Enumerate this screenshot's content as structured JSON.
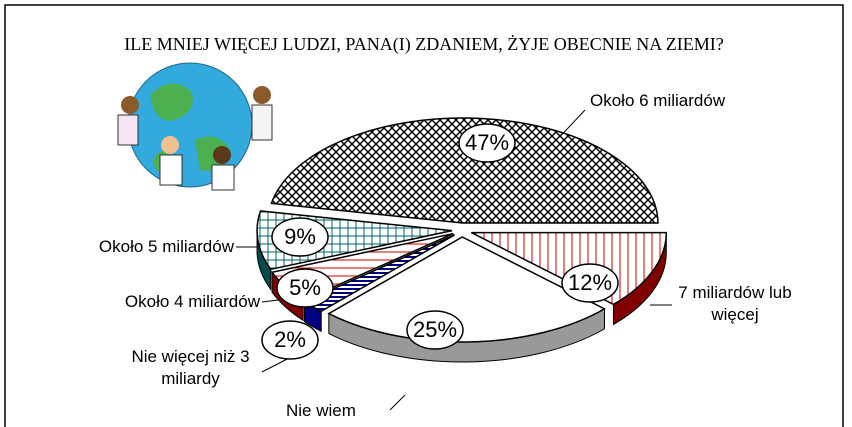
{
  "chart_data": {
    "type": "pie3d",
    "title": "ILE MNIEJ WIĘCEJ LUDZI, PANA(I) ZDANIEM, ŻYJE OBECNIE NA ZIEMI?",
    "categories": [
      "Około 6 miliardów",
      "7 miliardów lub więcej",
      "Nie wiem",
      "Nie więcej niż 3 miliardy",
      "Około 4 miliardów",
      "Około 5 miliardów"
    ],
    "values": [
      47,
      12,
      25,
      2,
      5,
      9
    ],
    "value_labels": [
      "47%",
      "12%",
      "25%",
      "2%",
      "5%",
      "9%"
    ],
    "colors": [
      "#000000",
      "#cc0000",
      "#ffffff",
      "#000080",
      "#cc0000",
      "#006666"
    ],
    "side_colors": [
      "#000000",
      "#800000",
      "#999999",
      "#000080",
      "#800000",
      "#004d4d"
    ]
  }
}
